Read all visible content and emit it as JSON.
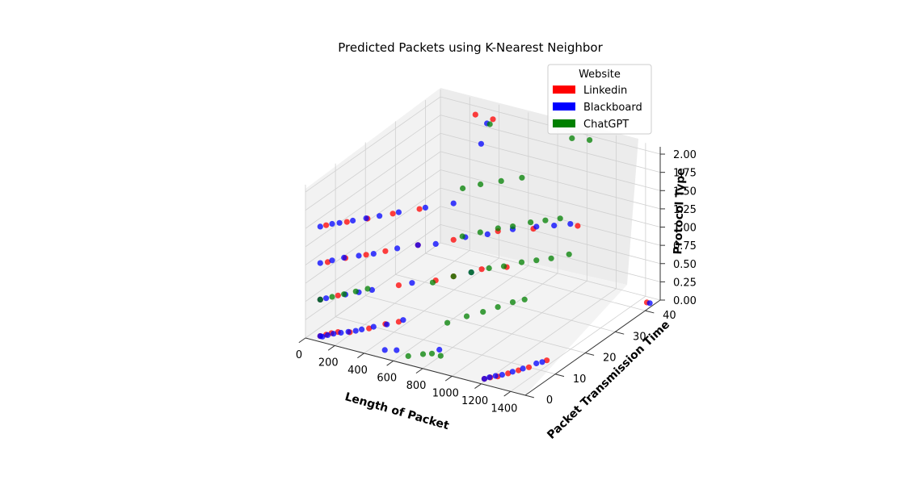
{
  "chart_data": {
    "type": "scatter3d",
    "title": "Predicted Packets using K-Nearest Neighbor",
    "xlabel": "Length of Packet",
    "ylabel": "Packet Transmission Time",
    "zlabel": "Protocol Type",
    "xlim": [
      0,
      1500
    ],
    "ylim": [
      0,
      45
    ],
    "zlim": [
      0,
      2.1
    ],
    "x_ticks": [
      0,
      200,
      400,
      600,
      800,
      1000,
      1200,
      1400
    ],
    "y_ticks": [
      0,
      10,
      20,
      30,
      40
    ],
    "z_ticks": [
      "0.00",
      "0.25",
      "0.50",
      "0.75",
      "1.00",
      "1.25",
      "1.50",
      "1.75",
      "2.00"
    ],
    "grid": true,
    "legend": {
      "title": "Website",
      "placement": "top-right",
      "entries": [
        {
          "name": "Linkedin",
          "color": "#ff0000"
        },
        {
          "name": "Blackboard",
          "color": "#0000ff"
        },
        {
          "name": "ChatGPT",
          "color": "#008000"
        }
      ]
    },
    "series": [
      {
        "name": "Linkedin",
        "color": "#ff0000",
        "points": [
          [
            60,
            2,
            0
          ],
          [
            80,
            3,
            0
          ],
          [
            95,
            4,
            0
          ],
          [
            120,
            5,
            0
          ],
          [
            180,
            6,
            0
          ],
          [
            250,
            9,
            0
          ],
          [
            300,
            12,
            0
          ],
          [
            350,
            14,
            0
          ],
          [
            60,
            2,
            0.5
          ],
          [
            120,
            5,
            0.5
          ],
          [
            350,
            14,
            0.5
          ],
          [
            500,
            19,
            0.5
          ],
          [
            560,
            22,
            0.5
          ],
          [
            650,
            27,
            0.5
          ],
          [
            760,
            30,
            0.5
          ],
          [
            90,
            3,
            1
          ],
          [
            150,
            6,
            1
          ],
          [
            230,
            9,
            1
          ],
          [
            300,
            12,
            1
          ],
          [
            420,
            17,
            1
          ],
          [
            560,
            22,
            1
          ],
          [
            720,
            29,
            1
          ],
          [
            880,
            33,
            1
          ],
          [
            1080,
            38,
            1
          ],
          [
            80,
            3,
            1.5
          ],
          [
            160,
            6,
            1.5
          ],
          [
            240,
            9,
            1.5
          ],
          [
            330,
            13,
            1.5
          ],
          [
            430,
            17,
            1.5
          ],
          [
            1180,
            2,
            0
          ],
          [
            1200,
            3,
            0
          ],
          [
            1230,
            4,
            0
          ],
          [
            1260,
            6,
            0
          ],
          [
            1290,
            8,
            0
          ],
          [
            1320,
            10,
            0
          ],
          [
            1360,
            14,
            0
          ],
          [
            1450,
            43,
            0
          ],
          [
            300,
            42,
            2
          ],
          [
            420,
            42,
            2
          ]
        ]
      },
      {
        "name": "Blackboard",
        "color": "#0000ff",
        "points": [
          [
            60,
            2,
            0
          ],
          [
            75,
            2,
            0
          ],
          [
            90,
            3,
            0
          ],
          [
            110,
            4,
            0
          ],
          [
            140,
            5,
            0
          ],
          [
            170,
            6,
            0
          ],
          [
            200,
            7,
            0
          ],
          [
            220,
            8,
            0
          ],
          [
            260,
            10,
            0
          ],
          [
            310,
            12,
            0
          ],
          [
            360,
            15,
            0
          ],
          [
            60,
            2,
            0.5
          ],
          [
            80,
            3,
            0.5
          ],
          [
            150,
            6,
            0.5
          ],
          [
            200,
            8,
            0.5
          ],
          [
            250,
            10,
            0.5
          ],
          [
            400,
            16,
            0.5
          ],
          [
            620,
            25,
            0.5
          ],
          [
            60,
            2,
            1
          ],
          [
            100,
            4,
            1
          ],
          [
            140,
            6,
            1
          ],
          [
            200,
            8,
            1
          ],
          [
            260,
            10,
            1
          ],
          [
            340,
            14,
            1
          ],
          [
            420,
            17,
            1
          ],
          [
            500,
            19,
            1
          ],
          [
            600,
            24,
            1
          ],
          [
            690,
            27,
            1
          ],
          [
            780,
            31,
            1
          ],
          [
            880,
            34,
            1
          ],
          [
            960,
            36,
            1
          ],
          [
            1030,
            38,
            1
          ],
          [
            60,
            2,
            1.5
          ],
          [
            100,
            4,
            1.5
          ],
          [
            130,
            5,
            1.5
          ],
          [
            180,
            7,
            1.5
          ],
          [
            230,
            9,
            1.5
          ],
          [
            280,
            11,
            1.5
          ],
          [
            350,
            14,
            1.5
          ],
          [
            450,
            18,
            1.5
          ],
          [
            560,
            22,
            1.5
          ],
          [
            1180,
            2,
            0
          ],
          [
            1195,
            3,
            0
          ],
          [
            1215,
            4,
            0
          ],
          [
            1240,
            5,
            0
          ],
          [
            1270,
            7,
            0
          ],
          [
            1300,
            9,
            0
          ],
          [
            1330,
            12,
            0
          ],
          [
            1350,
            13,
            0
          ],
          [
            480,
            3,
            0
          ],
          [
            540,
            4,
            0
          ],
          [
            750,
            8,
            0
          ],
          [
            1470,
            43,
            0
          ],
          [
            380,
            40,
            1.7
          ],
          [
            420,
            40,
            2
          ]
        ]
      },
      {
        "name": "ChatGPT",
        "color": "#008000",
        "points": [
          [
            60,
            2,
            0.5
          ],
          [
            100,
            4,
            0.5
          ],
          [
            140,
            6,
            0.5
          ],
          [
            180,
            8,
            0.5
          ],
          [
            220,
            10,
            0.5
          ],
          [
            500,
            18,
            0.5
          ],
          [
            560,
            22,
            0.5
          ],
          [
            620,
            25,
            0.5
          ],
          [
            680,
            28,
            0.5
          ],
          [
            740,
            30,
            0.5
          ],
          [
            800,
            33,
            0.5
          ],
          [
            860,
            35,
            0.5
          ],
          [
            920,
            37,
            0.5
          ],
          [
            980,
            40,
            0.5
          ],
          [
            600,
            18,
            0
          ],
          [
            650,
            22,
            0
          ],
          [
            700,
            25,
            0
          ],
          [
            740,
            28,
            0
          ],
          [
            780,
            31,
            0
          ],
          [
            820,
            33,
            0
          ],
          [
            580,
            24,
            1
          ],
          [
            640,
            27,
            1
          ],
          [
            700,
            30,
            1
          ],
          [
            760,
            32,
            1
          ],
          [
            820,
            35,
            1
          ],
          [
            880,
            37,
            1
          ],
          [
            940,
            39,
            1
          ],
          [
            500,
            28,
            1.5
          ],
          [
            560,
            31,
            1.5
          ],
          [
            640,
            34,
            1.5
          ],
          [
            720,
            37,
            1.5
          ],
          [
            700,
            5,
            0
          ],
          [
            740,
            6,
            0
          ],
          [
            800,
            6,
            0
          ],
          [
            640,
            3,
            0
          ],
          [
            1000,
            40,
            2.1
          ],
          [
            1100,
            41,
            2.1
          ],
          [
            440,
            40,
            2
          ]
        ]
      }
    ]
  }
}
